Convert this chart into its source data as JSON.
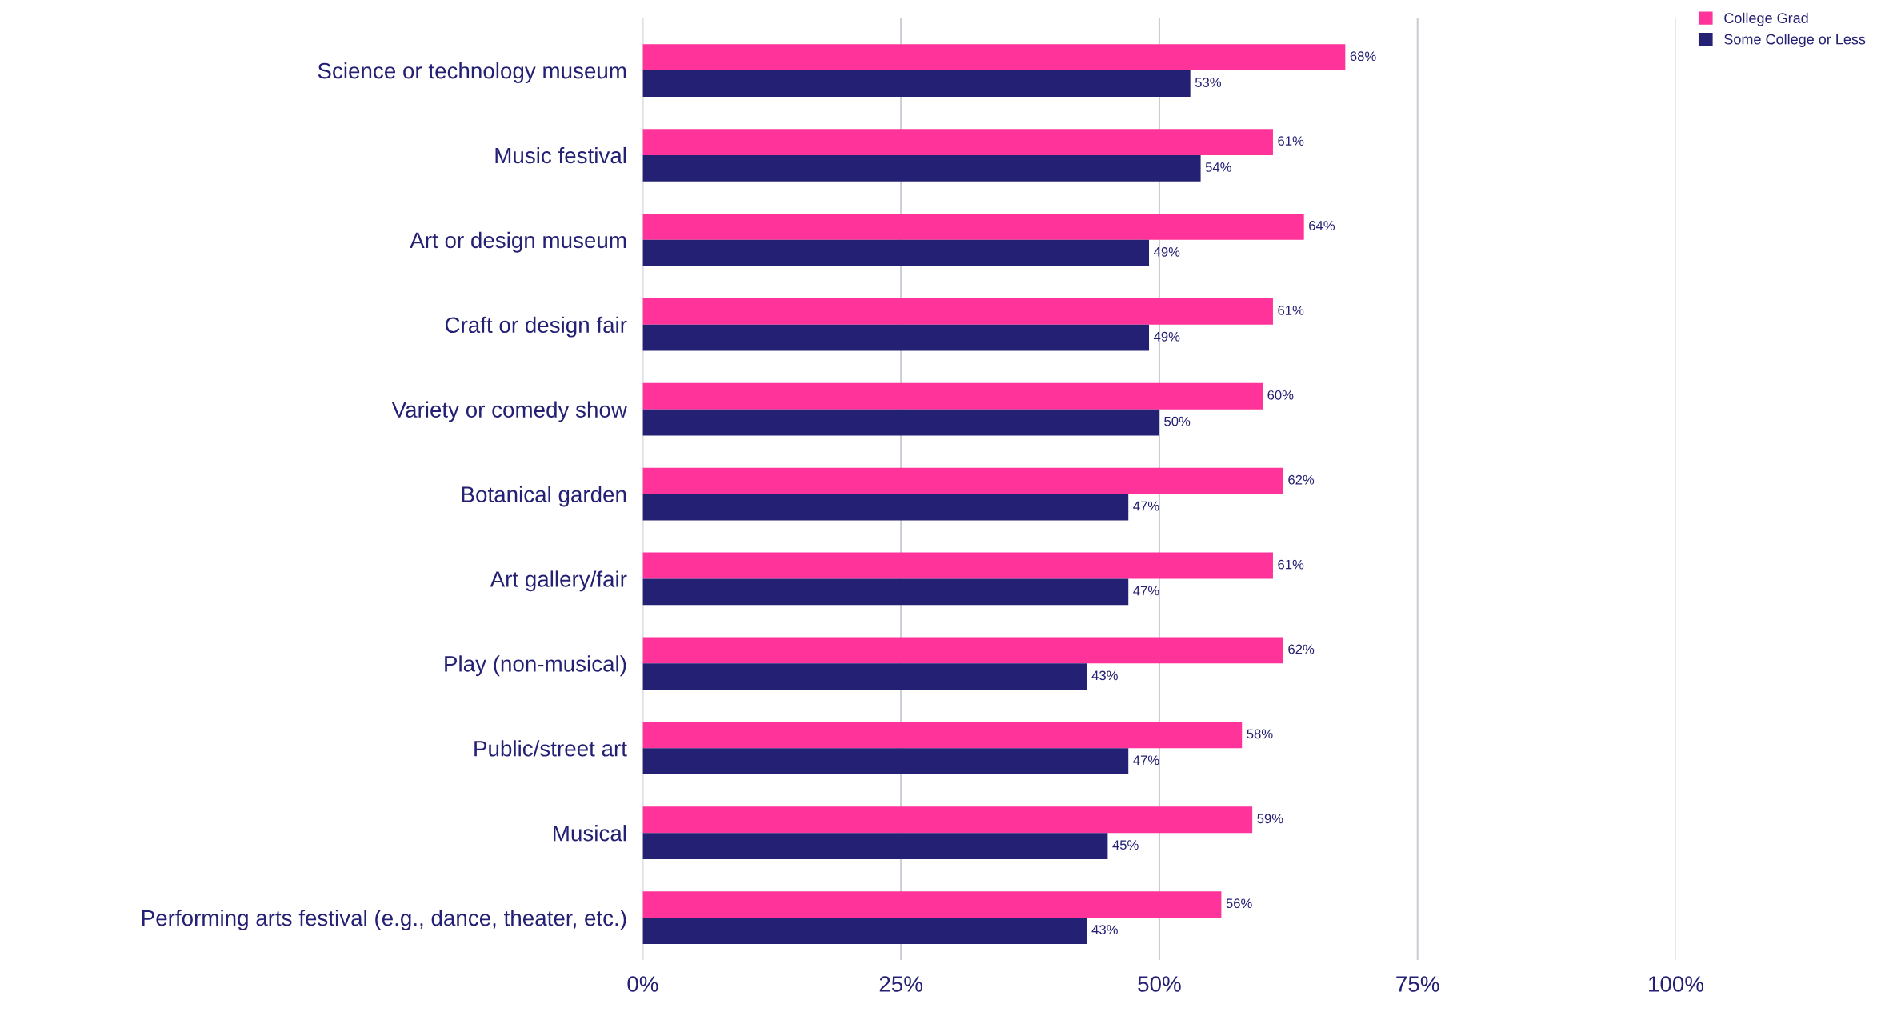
{
  "chart_data": {
    "type": "bar",
    "orientation": "horizontal",
    "categories": [
      "Science or technology museum",
      "Music festival",
      "Art or design museum",
      "Craft or design fair",
      "Variety or comedy show",
      "Botanical garden",
      "Art gallery/fair",
      "Play (non-musical)",
      "Public/street art",
      "Musical",
      "Performing arts festival (e.g., dance, theater, etc.)"
    ],
    "series": [
      {
        "name": "College Grad",
        "color": "#ff3399",
        "values": [
          68,
          61,
          64,
          61,
          60,
          62,
          61,
          62,
          58,
          59,
          56
        ],
        "value_labels": [
          "68%",
          "61%",
          "64%",
          "61%",
          "60%",
          "62%",
          "61%",
          "62%",
          "58%",
          "59%",
          "56%"
        ]
      },
      {
        "name": "Some College or Less",
        "color": "#242073",
        "values": [
          53,
          54,
          49,
          49,
          50,
          47,
          47,
          43,
          47,
          45,
          43
        ],
        "value_labels": [
          "53%",
          "54%",
          "49%",
          "49%",
          "50%",
          "47%",
          "47%",
          "43%",
          "47%",
          "45%",
          "43%"
        ]
      }
    ],
    "xlim": [
      0,
      100
    ],
    "xticks": [
      {
        "value": 0,
        "label": "0%"
      },
      {
        "value": 25,
        "label": "25%"
      },
      {
        "value": 50,
        "label": "50%"
      },
      {
        "value": 75,
        "label": "75%"
      },
      {
        "value": 100,
        "label": "100%"
      }
    ],
    "grid": "x",
    "legend": "top right"
  }
}
